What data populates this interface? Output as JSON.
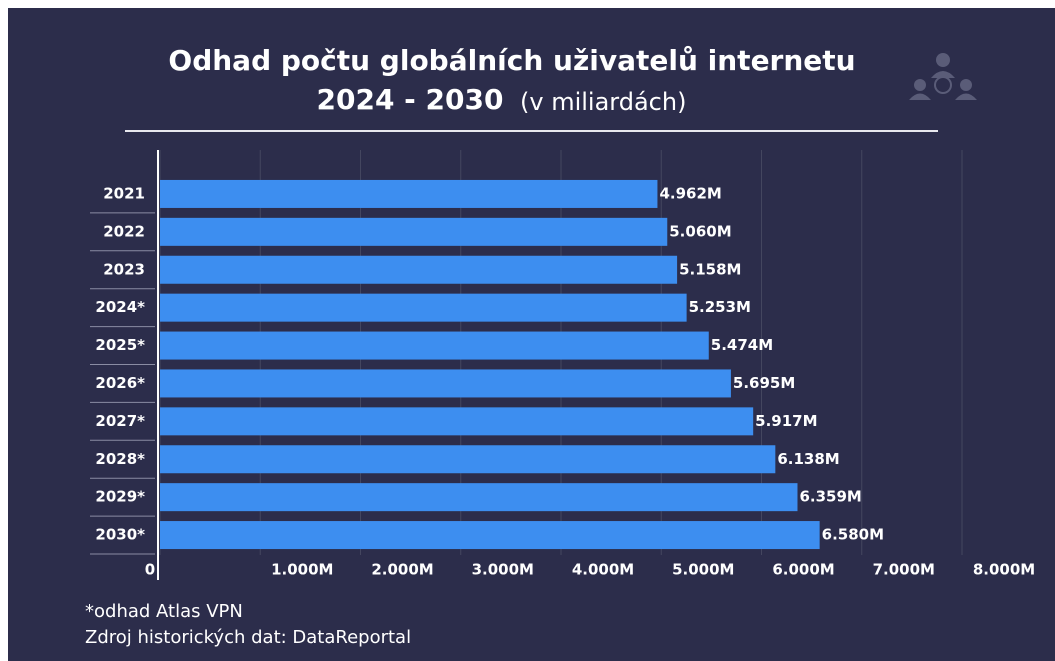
{
  "chart_data": {
    "type": "bar",
    "orientation": "horizontal",
    "title": "Odhad počtu globálních uživatelů internetu",
    "subtitle": "2024 - 2030",
    "subtitle_note": "(v miliardách)",
    "categories": [
      "2021",
      "2022",
      "2023",
      "2024*",
      "2025*",
      "2026*",
      "2027*",
      "2028*",
      "2029*",
      "2030*"
    ],
    "values": [
      4962,
      5060,
      5158,
      5253,
      5474,
      5695,
      5917,
      6138,
      6359,
      6580
    ],
    "value_labels": [
      "4.962M",
      "5.060M",
      "5.158M",
      "5.253M",
      "5.474M",
      "5.695M",
      "5.917M",
      "6.138M",
      "6.359M",
      "6.580M"
    ],
    "color": "#3d8ef0",
    "xlim": [
      0,
      8000
    ],
    "xticks": [
      0,
      {
        "value": 1000,
        "label": "1.000M"
      },
      {
        "value": 2000,
        "label": "2.000M"
      },
      {
        "value": 3000,
        "label": "3.000M"
      },
      {
        "value": 4000,
        "label": "4.000M"
      },
      {
        "value": 5000,
        "label": "5.000M"
      },
      {
        "value": 6000,
        "label": "6.000M"
      },
      {
        "value": 7000,
        "label": "7.000M"
      },
      {
        "value": 8000,
        "label": "8.000M"
      }
    ],
    "grid": true,
    "notes": [
      "*odhad Atlas VPN",
      "Zdroj historických dat: DataReportal"
    ]
  }
}
